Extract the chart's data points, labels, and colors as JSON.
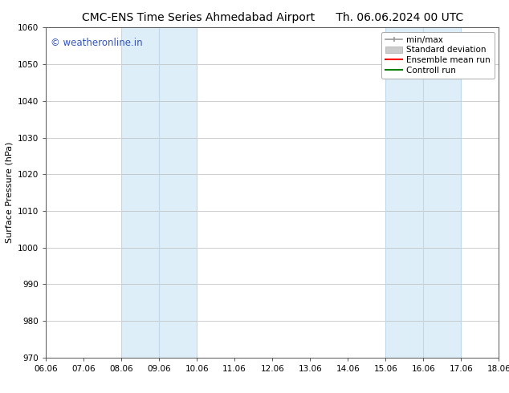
{
  "title_left": "CMC-ENS Time Series Ahmedabad Airport",
  "title_right": "Th. 06.06.2024 00 UTC",
  "ylabel": "Surface Pressure (hPa)",
  "xlabel_ticks": [
    "06.06",
    "07.06",
    "08.06",
    "09.06",
    "10.06",
    "11.06",
    "12.06",
    "13.06",
    "14.06",
    "15.06",
    "16.06",
    "17.06",
    "18.06"
  ],
  "ylim": [
    970,
    1060
  ],
  "yticks": [
    970,
    980,
    990,
    1000,
    1010,
    1020,
    1030,
    1040,
    1050,
    1060
  ],
  "xlim_start": 0,
  "xlim_end": 12,
  "shaded_regions": [
    {
      "x_start": 2,
      "x_end": 4,
      "color": "#ddeef8"
    },
    {
      "x_start": 9,
      "x_end": 11,
      "color": "#ddeef8"
    }
  ],
  "vertical_lines_inner": [
    {
      "x": 3,
      "color": "#c0d8ec",
      "lw": 0.8
    },
    {
      "x": 10,
      "color": "#c0d8ec",
      "lw": 0.8
    }
  ],
  "watermark": "© weatheronline.in",
  "watermark_color": "#3355bb",
  "watermark_fontsize": 8.5,
  "bg_color": "#ffffff",
  "plot_bg_color": "#ffffff",
  "grid_color": "#bbbbbb",
  "title_fontsize": 10,
  "axis_fontsize": 8,
  "tick_fontsize": 7.5,
  "legend_fontsize": 7.5
}
